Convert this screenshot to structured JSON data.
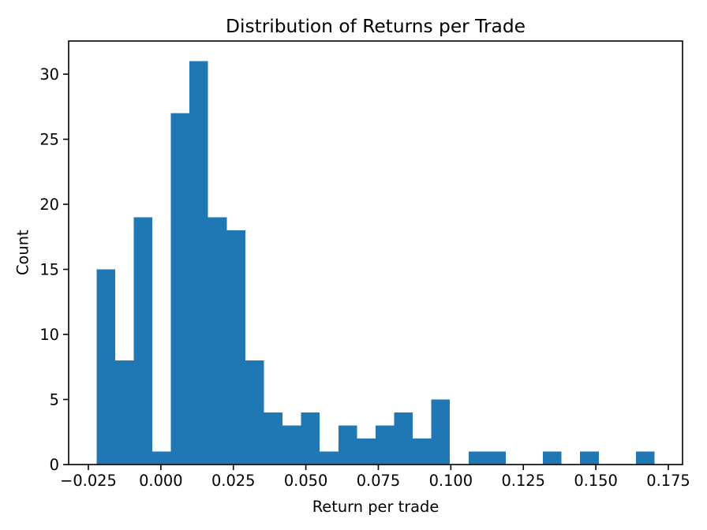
{
  "window": {
    "background": "#ffffff"
  },
  "chart_data": {
    "type": "bar",
    "subtype": "histogram",
    "title": "Distribution of Returns per Trade",
    "xlabel": "Return per trade",
    "ylabel": "Count",
    "bar_color": "#1f77b4",
    "axis_color": "#000000",
    "text_color": "#000000",
    "grid": false,
    "legend": false,
    "bin_start": -0.0222,
    "bin_width": 0.006415,
    "counts": [
      15,
      8,
      19,
      1,
      27,
      31,
      19,
      18,
      8,
      4,
      3,
      4,
      1,
      3,
      2,
      3,
      4,
      2,
      5,
      0,
      1,
      1,
      0,
      0,
      1,
      0,
      1,
      0,
      0,
      1
    ],
    "xlim": [
      -0.0318,
      0.1799
    ],
    "ylim": [
      0,
      32.55
    ],
    "xticks": [
      {
        "value": -0.025,
        "label": "−0.025"
      },
      {
        "value": 0.0,
        "label": "0.000"
      },
      {
        "value": 0.025,
        "label": "0.025"
      },
      {
        "value": 0.05,
        "label": "0.050"
      },
      {
        "value": 0.075,
        "label": "0.075"
      },
      {
        "value": 0.1,
        "label": "0.100"
      },
      {
        "value": 0.125,
        "label": "0.125"
      },
      {
        "value": 0.15,
        "label": "0.150"
      },
      {
        "value": 0.175,
        "label": "0.175"
      }
    ],
    "yticks": [
      {
        "value": 0,
        "label": "0"
      },
      {
        "value": 5,
        "label": "5"
      },
      {
        "value": 10,
        "label": "10"
      },
      {
        "value": 15,
        "label": "15"
      },
      {
        "value": 20,
        "label": "20"
      },
      {
        "value": 25,
        "label": "25"
      },
      {
        "value": 30,
        "label": "30"
      }
    ]
  }
}
